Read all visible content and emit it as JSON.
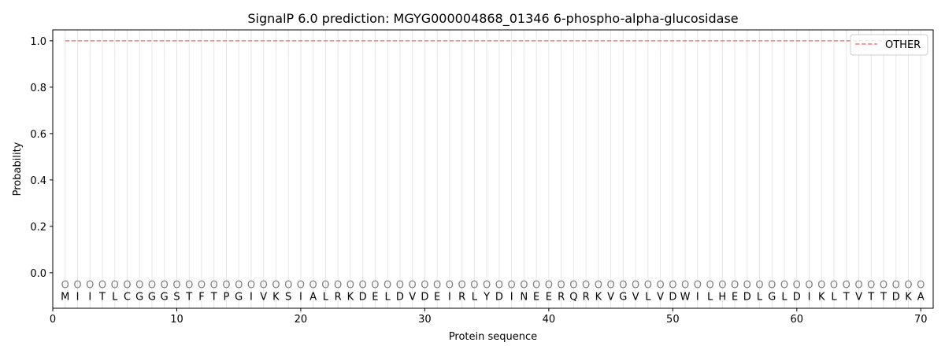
{
  "chart_data": {
    "type": "line",
    "title": "SignalP 6.0 prediction: MGYG000004868_01346 6-phospho-alpha-glucosidase",
    "xlabel": "Protein sequence",
    "ylabel": "Probability",
    "xlim": [
      0,
      71
    ],
    "ylim": [
      -0.153,
      1.047
    ],
    "x_ticks": [
      0,
      10,
      20,
      30,
      40,
      50,
      60,
      70
    ],
    "y_ticks": [
      0.0,
      0.2,
      0.4,
      0.6,
      0.8,
      1.0
    ],
    "y_tick_labels": [
      "0.0",
      "0.2",
      "0.4",
      "0.6",
      "0.8",
      "1.0"
    ],
    "grid": "vertical lines at each residue",
    "legend_position": "top-right",
    "sequence": [
      "M",
      "I",
      "I",
      "T",
      "L",
      "C",
      "G",
      "G",
      "G",
      "S",
      "T",
      "F",
      "T",
      "P",
      "G",
      "I",
      "V",
      "K",
      "S",
      "I",
      "A",
      "L",
      "R",
      "K",
      "D",
      "E",
      "L",
      "D",
      "V",
      "D",
      "E",
      "I",
      "R",
      "L",
      "Y",
      "D",
      "I",
      "N",
      "E",
      "E",
      "R",
      "Q",
      "R",
      "K",
      "V",
      "G",
      "V",
      "L",
      "V",
      "D",
      "W",
      "I",
      "L",
      "H",
      "E",
      "D",
      "L",
      "G",
      "L",
      "D",
      "I",
      "K",
      "L",
      "T",
      "V",
      "T",
      "T",
      "D",
      "K",
      "A"
    ],
    "region_label": "O",
    "series": [
      {
        "name": "OTHER",
        "color": "#f08080",
        "style": "dashed",
        "x_range": [
          1,
          70
        ],
        "value": 1.0
      }
    ]
  }
}
